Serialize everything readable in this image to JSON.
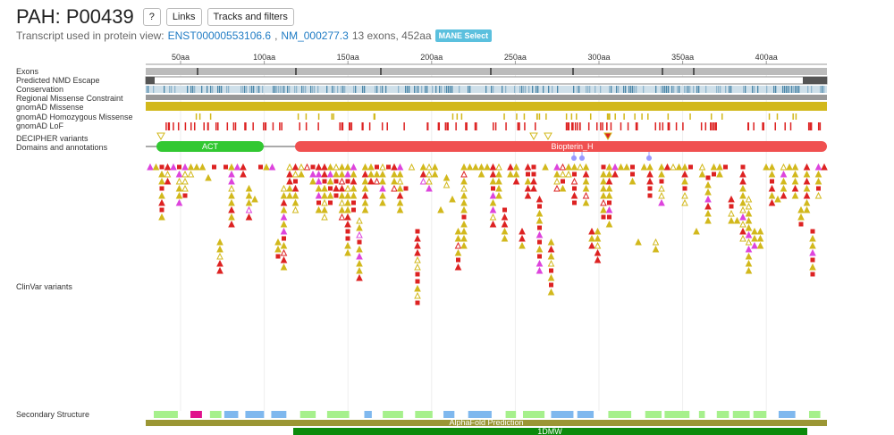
{
  "header": {
    "title": "PAH: P00439",
    "buttons": [
      "?",
      "Links",
      "Tracks and filters"
    ]
  },
  "transcript": {
    "prefix": "Transcript used in protein view:",
    "links": [
      "ENST00000553106.6",
      "NM_000277.3"
    ],
    "suffix": "13 exons, 452aa",
    "badge": "MANE Select"
  },
  "axis": [
    "50aa",
    "100aa",
    "150aa",
    "200aa",
    "250aa",
    "300aa",
    "350aa",
    "400aa"
  ],
  "tracks": [
    "Exons",
    "Predicted NMD Escape",
    "Conservation",
    "Regional Missense Constraint",
    "gnomAD Missense",
    "gnomAD Homozygous Missense",
    "gnomAD LoF",
    "DECIPHER variants",
    "Domains and annotations",
    "ClinVar variants",
    "Secondary Structure"
  ],
  "domains": [
    "ACT",
    "Biopterin_H"
  ],
  "structures": [
    "AlphaFold Prediction",
    "1DMW"
  ]
}
